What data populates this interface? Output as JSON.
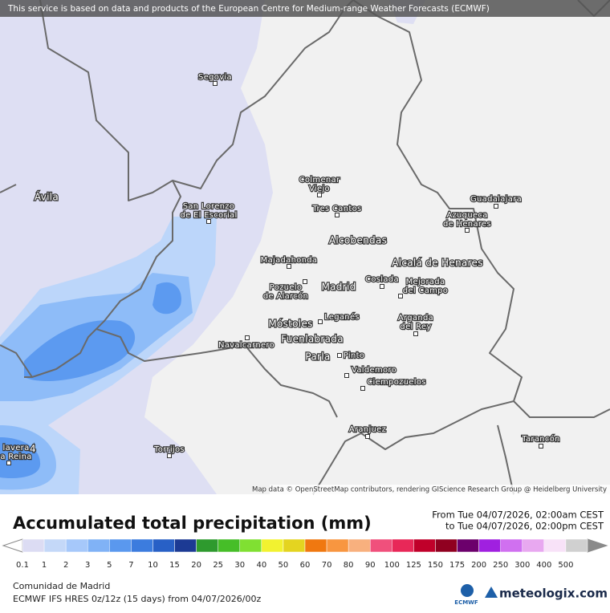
{
  "map": {
    "service_note": "This service is based on data and products of the European Centre for Medium-range Weather Forecasts (ECMWF)",
    "attribution": "Map data © OpenStreetMap contributors, rendering GIScience Research Group @ Heidelberg University",
    "cities": [
      {
        "lines": [
          "Segovia"
        ]
      },
      {
        "lines": [
          "Ávila"
        ]
      },
      {
        "lines": [
          "Colmenar",
          "Viejo"
        ]
      },
      {
        "lines": [
          "Guadalajara"
        ]
      },
      {
        "lines": [
          "San Lorenzo",
          "de El Escorial"
        ]
      },
      {
        "lines": [
          "Tres Cantos"
        ]
      },
      {
        "lines": [
          "Azuqueca",
          "de Henares"
        ]
      },
      {
        "lines": [
          "Alcobendas"
        ]
      },
      {
        "lines": [
          "Majadahonda"
        ]
      },
      {
        "lines": [
          "Alcalá de Henares"
        ]
      },
      {
        "lines": [
          "Pozuelo",
          "de Alarcón"
        ]
      },
      {
        "lines": [
          "Madrid"
        ]
      },
      {
        "lines": [
          "Coslada"
        ]
      },
      {
        "lines": [
          "Mejorada",
          "del Campo"
        ]
      },
      {
        "lines": [
          "Leganés"
        ]
      },
      {
        "lines": [
          "Arganda",
          "del Rey"
        ]
      },
      {
        "lines": [
          "Móstoles"
        ]
      },
      {
        "lines": [
          "Navalcarnero"
        ]
      },
      {
        "lines": [
          "Fuenlabrada"
        ]
      },
      {
        "lines": [
          "Parla"
        ]
      },
      {
        "lines": [
          "Pinto"
        ]
      },
      {
        "lines": [
          "Valdemoro"
        ]
      },
      {
        "lines": [
          "Ciempozuelos"
        ]
      },
      {
        "lines": [
          "Aranjuez"
        ]
      },
      {
        "lines": [
          "Tarancón"
        ]
      },
      {
        "lines": [
          "Torrijos"
        ]
      },
      {
        "lines": [
          "lavera",
          "a Reina"
        ]
      },
      {
        "lines": [
          "4"
        ]
      }
    ]
  },
  "legend": {
    "title": "Accumulated total precipitation (mm)",
    "period_from": "From Tue 04/07/2026, 02:00am CEST",
    "period_to": "to Tue 04/07/2026, 02:00pm CEST",
    "labels": [
      "0.1",
      "1",
      "2",
      "3",
      "5",
      "7",
      "10",
      "15",
      "20",
      "25",
      "30",
      "40",
      "50",
      "60",
      "70",
      "80",
      "90",
      "100",
      "125",
      "150",
      "175",
      "200",
      "250",
      "300",
      "400",
      "500"
    ],
    "colors": [
      "#dcdcf3",
      "#c4d8f8",
      "#a6c8fa",
      "#80b2f6",
      "#5a98ee",
      "#3c7cde",
      "#2860c6",
      "#1c3a94",
      "#2e9a2e",
      "#46be28",
      "#80e032",
      "#f2f230",
      "#e4d420",
      "#f07810",
      "#f89640",
      "#f8b07e",
      "#f0507c",
      "#e82858",
      "#c0002a",
      "#900020",
      "#6c006c",
      "#a020e0",
      "#d070f0",
      "#e8a8f0",
      "#f8e2f8",
      "#d0d0d0"
    ]
  },
  "footer": {
    "region": "Comunidad de Madrid",
    "model": "ECMWF IFS HRES 0z/12z (15 days) from  04/07/2026/00z",
    "ecmwf_logo": "ECMWF",
    "brand": "meteologix.com"
  }
}
